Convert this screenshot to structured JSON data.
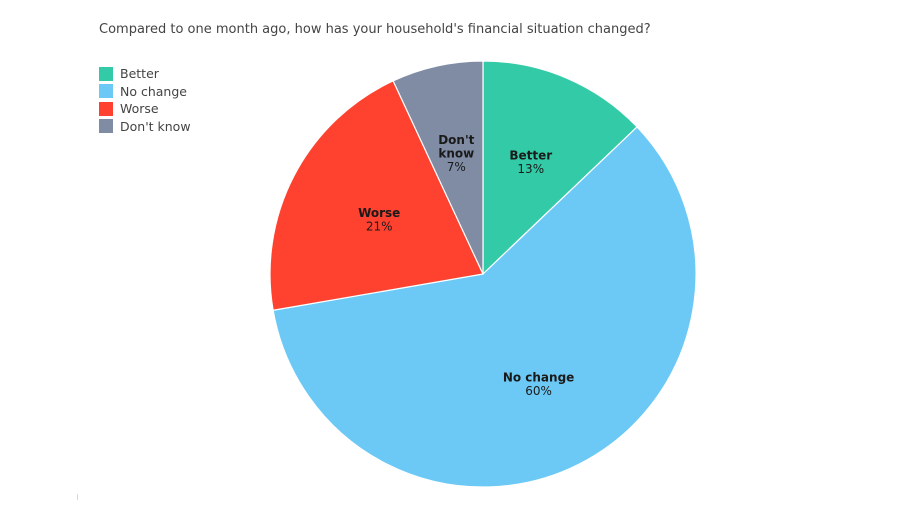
{
  "chart_data": {
    "type": "pie",
    "title": "Compared to one month ago, how has your household's financial situation changed?",
    "legend_position": "top-left",
    "slices": [
      {
        "name": "Better",
        "value": 13,
        "value_label": "13%",
        "label_lines": [
          "Better"
        ],
        "color": "#33cba7"
      },
      {
        "name": "No change",
        "value": 60,
        "value_label": "60%",
        "label_lines": [
          "No change"
        ],
        "color": "#6cc9f5"
      },
      {
        "name": "Worse",
        "value": 21,
        "value_label": "21%",
        "label_lines": [
          "Worse"
        ],
        "color": "#fe422f"
      },
      {
        "name": "Don't know",
        "value": 7,
        "value_label": "7%",
        "label_lines": [
          "Don't",
          "know"
        ],
        "color": "#7f8ca3"
      }
    ]
  }
}
